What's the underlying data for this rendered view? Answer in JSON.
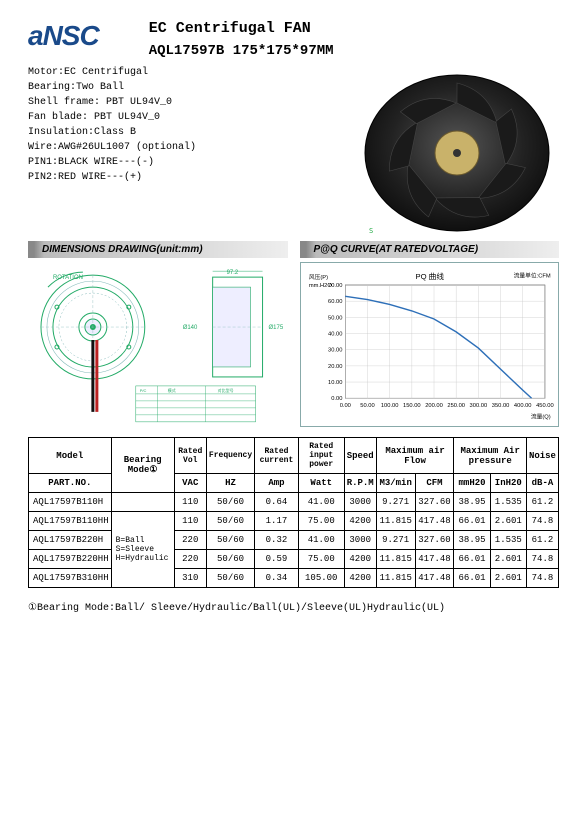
{
  "header": {
    "logo": "aNSC",
    "title": "EC Centrifugal FAN",
    "model_line": "AQL17597B    175*175*97MM"
  },
  "specs": {
    "l1": "Motor:EC Centrifugal",
    "l2": "Bearing:Two Ball",
    "l3": "Shell  frame: PBT UL94V_0",
    "l4": "Fan  blade: PBT UL94V_0",
    "l5": "Insulation:Class B",
    "l6": "Wire:AWG#26UL1007 (optional)",
    "l7": "PIN1:BLACK WIRE---(-)",
    "l8": "PIN2:RED WIRE---(+)"
  },
  "sections": {
    "dim": "DIMENSIONS DRAWING(unit:mm)",
    "pq": "P@Q CURVE(AT RATEDVOLTAGE)"
  },
  "pq_chart": {
    "title": "PQ 曲线",
    "ylabel_cn": "风压(P)",
    "ylabel_unit": "mm.H2O",
    "xlabel_right": "流量单位:CFM",
    "xlabel_bottom": "流量(Q)",
    "xlim": [
      0,
      450
    ],
    "ylim": [
      0,
      70
    ],
    "xticks": [
      0,
      50,
      100,
      150,
      200,
      250,
      300,
      350,
      400,
      450
    ],
    "yticks": [
      0,
      10,
      20,
      30,
      40,
      50,
      60,
      70
    ],
    "line_color": "#2d6fb8",
    "grid_color": "#c8c8c8",
    "bg": "#ffffff",
    "points": [
      [
        0,
        63
      ],
      [
        50,
        61
      ],
      [
        100,
        58
      ],
      [
        150,
        54
      ],
      [
        200,
        49
      ],
      [
        250,
        41
      ],
      [
        300,
        31
      ],
      [
        350,
        18
      ],
      [
        400,
        5
      ],
      [
        420,
        0
      ]
    ]
  },
  "table": {
    "headers": {
      "model": "Model",
      "bearing": "Bearing Mode①",
      "vol": "Rated Vol",
      "freq": "Frequency",
      "current": "Rated current",
      "power": "Rated input power",
      "speed": "Speed",
      "airflow": "Maximum air Flow",
      "pressure": "Maximum Air pressure",
      "noise": "Noise"
    },
    "sub": {
      "part": "PART.NO.",
      "vac": "VAC",
      "hz": "HZ",
      "amp": "Amp",
      "watt": "Watt",
      "rpm": "R.P.M",
      "m3": "M3/min",
      "cfm": "CFM",
      "mmh": "mmH20",
      "inh": "InH20",
      "dba": "dB-A"
    },
    "bearing_note": "B=Ball\nS=Sleeve\nH=Hydraulic",
    "rows": [
      {
        "model": "AQL17597B110H",
        "vac": "110",
        "hz": "50/60",
        "amp": "0.64",
        "watt": "41.00",
        "rpm": "3000",
        "m3": "9.271",
        "cfm": "327.60",
        "mmh": "38.95",
        "inh": "1.535",
        "db": "61.2"
      },
      {
        "model": "AQL17597B110HH",
        "vac": "110",
        "hz": "50/60",
        "amp": "1.17",
        "watt": "75.00",
        "rpm": "4200",
        "m3": "11.815",
        "cfm": "417.48",
        "mmh": "66.01",
        "inh": "2.601",
        "db": "74.8"
      },
      {
        "model": "AQL17597B220H",
        "vac": "220",
        "hz": "50/60",
        "amp": "0.32",
        "watt": "41.00",
        "rpm": "3000",
        "m3": "9.271",
        "cfm": "327.60",
        "mmh": "38.95",
        "inh": "1.535",
        "db": "61.2"
      },
      {
        "model": "AQL17597B220HH",
        "vac": "220",
        "hz": "50/60",
        "amp": "0.59",
        "watt": "75.00",
        "rpm": "4200",
        "m3": "11.815",
        "cfm": "417.48",
        "mmh": "66.01",
        "inh": "2.601",
        "db": "74.8"
      },
      {
        "model": "AQL17597B310HH",
        "vac": "310",
        "hz": "50/60",
        "amp": "0.34",
        "watt": "105.00",
        "rpm": "4200",
        "m3": "11.815",
        "cfm": "417.48",
        "mmh": "66.01",
        "inh": "2.601",
        "db": "74.8"
      }
    ]
  },
  "footnote": "①Bearing Mode:Ball/ Sleeve/Hydraulic/Ball(UL)/Sleeve(UL)Hydraulic(UL)"
}
